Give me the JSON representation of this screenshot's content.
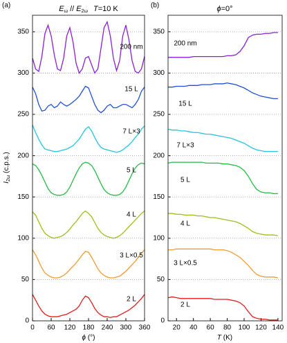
{
  "chart_data": [
    {
      "type": "line",
      "panel": "(a)",
      "title_parts": [
        "E",
        "ω",
        " // ",
        "E",
        "2ω",
        "T",
        "=10 K"
      ],
      "ylabel_parts": [
        "I",
        "2ω",
        " (c.p.s.)"
      ],
      "xlabel_parts": [
        "ϕ",
        " (°)"
      ],
      "xlim": [
        0,
        360
      ],
      "ylim": [
        0,
        370
      ],
      "xticks": [
        0,
        60,
        120,
        180,
        240,
        300,
        360
      ],
      "yticks": [
        0,
        50,
        100,
        150,
        200,
        250,
        300,
        350
      ],
      "grid": true,
      "x": [
        0,
        10,
        20,
        30,
        40,
        50,
        60,
        70,
        80,
        90,
        100,
        110,
        120,
        130,
        140,
        150,
        160,
        170,
        180,
        190,
        200,
        210,
        220,
        230,
        240,
        250,
        260,
        270,
        280,
        290,
        300,
        310,
        320,
        330,
        340,
        350,
        360
      ],
      "series": [
        {
          "name": "200 nm",
          "color": "#8a1fd6",
          "values": [
            318,
            305,
            302,
            320,
            348,
            358,
            345,
            322,
            305,
            303,
            318,
            345,
            355,
            338,
            312,
            300,
            305,
            318,
            320,
            310,
            300,
            305,
            330,
            355,
            362,
            345,
            318,
            303,
            315,
            345,
            358,
            340,
            315,
            302,
            300,
            305,
            320
          ]
        },
        {
          "name": "15 L",
          "color": "#1f4fd6",
          "values": [
            283,
            275,
            262,
            254,
            255,
            260,
            262,
            258,
            260,
            265,
            262,
            260,
            262,
            265,
            268,
            272,
            278,
            284,
            282,
            272,
            262,
            255,
            252,
            255,
            260,
            262,
            258,
            258,
            260,
            262,
            262,
            260,
            258,
            262,
            268,
            278,
            283
          ]
        },
        {
          "name": "7 L×3",
          "color": "#22c4e0",
          "values": [
            237,
            228,
            220,
            213,
            208,
            207,
            206,
            205,
            205,
            206,
            207,
            208,
            210,
            212,
            216,
            220,
            226,
            232,
            235,
            230,
            222,
            215,
            210,
            208,
            207,
            206,
            205,
            204,
            205,
            207,
            210,
            213,
            217,
            222,
            226,
            232,
            236
          ]
        },
        {
          "name": "5 L",
          "color": "#22bb44",
          "values": [
            190,
            188,
            183,
            176,
            168,
            160,
            155,
            153,
            152,
            152,
            153,
            156,
            162,
            170,
            178,
            185,
            190,
            192,
            191,
            188,
            182,
            174,
            166,
            159,
            155,
            153,
            152,
            152,
            153,
            156,
            162,
            170,
            178,
            185,
            189,
            191,
            190
          ]
        },
        {
          "name": "4 L",
          "color": "#9cbf19",
          "values": [
            132,
            128,
            120,
            112,
            106,
            103,
            101,
            100,
            101,
            102,
            104,
            107,
            111,
            116,
            120,
            125,
            130,
            133,
            130,
            126,
            119,
            112,
            107,
            104,
            102,
            101,
            100,
            101,
            103,
            106,
            110,
            114,
            118,
            122,
            126,
            130,
            133
          ]
        },
        {
          "name": "3 L×0.5",
          "color": "#f09a30",
          "values": [
            86,
            80,
            72,
            64,
            58,
            55,
            53,
            52,
            52,
            53,
            55,
            58,
            62,
            66,
            70,
            75,
            80,
            84,
            83,
            77,
            70,
            63,
            58,
            55,
            53,
            52,
            52,
            53,
            54,
            57,
            60,
            64,
            68,
            72,
            77,
            82,
            86
          ]
        },
        {
          "name": "2 L",
          "color": "#e01c1c",
          "values": [
            32,
            25,
            18,
            12,
            8,
            6,
            5,
            5,
            5,
            6,
            7,
            8,
            10,
            12,
            14,
            18,
            25,
            30,
            28,
            22,
            15,
            10,
            7,
            5,
            5,
            4,
            5,
            5,
            7,
            9,
            11,
            13,
            16,
            19,
            23,
            27,
            32
          ]
        }
      ]
    },
    {
      "type": "line",
      "panel": "(b)",
      "title_parts": [
        "ϕ",
        "=0°"
      ],
      "xlabel_parts": [
        "T",
        " (K)"
      ],
      "xlim": [
        10,
        145
      ],
      "ylim": [
        0,
        370
      ],
      "xticks": [
        20,
        40,
        60,
        80,
        100,
        120,
        140
      ],
      "yticks": [
        0,
        50,
        100,
        150,
        200,
        250,
        300,
        350
      ],
      "grid": true,
      "x": [
        10,
        15,
        20,
        25,
        30,
        35,
        40,
        45,
        50,
        55,
        60,
        65,
        70,
        75,
        80,
        85,
        90,
        95,
        100,
        105,
        110,
        115,
        120,
        125,
        130,
        135,
        140
      ],
      "series": [
        {
          "name": "200 nm",
          "color": "#8a1fd6",
          "values": [
            319,
            319,
            319,
            319,
            319,
            319,
            320,
            320,
            320,
            320,
            320,
            320,
            320,
            320,
            321,
            321,
            322,
            326,
            333,
            343,
            346,
            347,
            347,
            348,
            348,
            349,
            349
          ]
        },
        {
          "name": "15 L",
          "color": "#1f4fd6",
          "values": [
            283,
            283,
            284,
            284,
            284,
            285,
            285,
            285,
            286,
            286,
            286,
            287,
            287,
            287,
            288,
            287,
            286,
            284,
            282,
            279,
            276,
            274,
            272,
            271,
            270,
            269,
            269
          ]
        },
        {
          "name": "7 L×3",
          "color": "#22c4e0",
          "values": [
            232,
            231,
            231,
            230,
            230,
            229,
            228,
            228,
            227,
            226,
            226,
            225,
            224,
            223,
            222,
            221,
            219,
            217,
            215,
            212,
            209,
            207,
            206,
            205,
            205,
            205,
            205
          ]
        },
        {
          "name": "5 L",
          "color": "#22bb44",
          "values": [
            191,
            192,
            192,
            192,
            192,
            192,
            192,
            192,
            192,
            191,
            191,
            191,
            191,
            190,
            190,
            189,
            188,
            186,
            182,
            175,
            166,
            159,
            156,
            155,
            155,
            154,
            154
          ]
        },
        {
          "name": "4 L",
          "color": "#9cbf19",
          "values": [
            130,
            130,
            129,
            129,
            128,
            128,
            128,
            127,
            127,
            126,
            125,
            125,
            124,
            123,
            122,
            121,
            120,
            118,
            115,
            112,
            108,
            106,
            105,
            104,
            104,
            104,
            103
          ]
        },
        {
          "name": "3 L×0.5",
          "color": "#f09a30",
          "values": [
            86,
            86,
            87,
            87,
            87,
            87,
            87,
            87,
            87,
            87,
            87,
            86,
            86,
            86,
            85,
            83,
            80,
            77,
            72,
            67,
            61,
            56,
            54,
            53,
            53,
            53,
            52
          ]
        },
        {
          "name": "2 L",
          "color": "#e01c1c",
          "values": [
            28,
            29,
            28,
            27,
            27,
            27,
            27,
            27,
            27,
            27,
            27,
            26,
            26,
            26,
            26,
            25,
            24,
            22,
            18,
            11,
            5,
            3,
            2,
            2,
            1,
            1,
            1
          ]
        }
      ]
    }
  ]
}
